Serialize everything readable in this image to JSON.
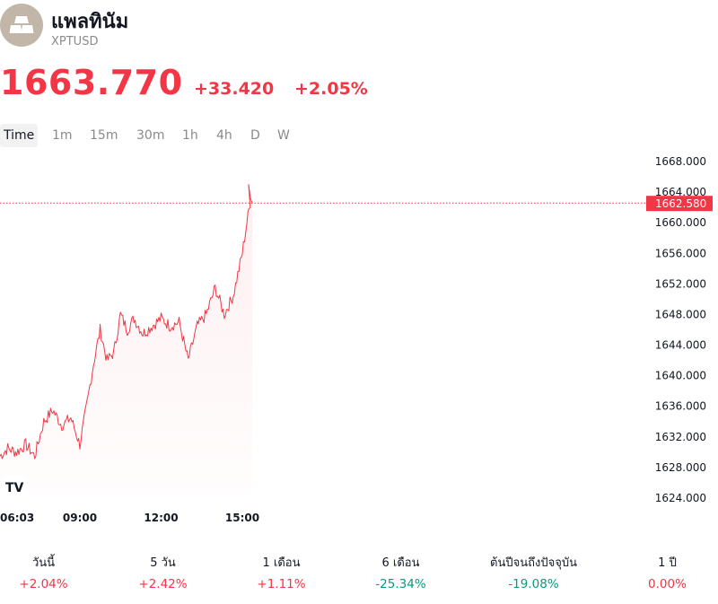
{
  "header": {
    "title": "แพลทินัม",
    "ticker": "XPTUSD",
    "logo_icon": "metal-bars-icon"
  },
  "quote": {
    "price": "1663.770",
    "change": "+33.420",
    "change_pct": "+2.05%",
    "color": "#f23645"
  },
  "tabs": [
    {
      "label": "Time",
      "active": true
    },
    {
      "label": "1m"
    },
    {
      "label": "15m"
    },
    {
      "label": "30m"
    },
    {
      "label": "1h"
    },
    {
      "label": "4h"
    },
    {
      "label": "D"
    },
    {
      "label": "W"
    }
  ],
  "chart_data": {
    "type": "line",
    "y_ticks": [
      "1668.000",
      "1664.000",
      "1660.000",
      "1656.000",
      "1652.000",
      "1648.000",
      "1644.000",
      "1640.000",
      "1636.000",
      "1632.000",
      "1628.000",
      "1624.000"
    ],
    "x_ticks": [
      "06:03",
      "09:00",
      "12:00",
      "15:00"
    ],
    "ylim": [
      1622,
      1670
    ],
    "current_price": 1662.58,
    "current_price_label": "1662.580",
    "line_color": "#f23645",
    "watermark": "TV",
    "series": [
      {
        "x": [
          "06:03",
          "06:20",
          "06:40",
          "07:00",
          "07:20",
          "07:40",
          "08:00",
          "08:20",
          "08:40",
          "09:00",
          "09:15",
          "09:30",
          "09:45",
          "10:00",
          "10:15",
          "10:30",
          "10:45",
          "11:00",
          "11:20",
          "11:40",
          "12:00",
          "12:20",
          "12:40",
          "13:00",
          "13:20",
          "13:40",
          "14:00",
          "14:20",
          "14:40",
          "15:00",
          "15:10",
          "15:20"
        ],
        "values": [
          1629.5,
          1630.5,
          1630.0,
          1631.0,
          1629.5,
          1634.0,
          1635.5,
          1633.5,
          1634.5,
          1631.0,
          1636.0,
          1641.5,
          1646.0,
          1642.0,
          1643.0,
          1648.0,
          1646.0,
          1647.5,
          1645.5,
          1646.5,
          1647.5,
          1646.5,
          1647.0,
          1642.0,
          1646.5,
          1648.0,
          1651.5,
          1648.0,
          1650.5,
          1656.0,
          1660.0,
          1663.5
        ]
      }
    ]
  },
  "performance": [
    {
      "label": "วันนี้",
      "value": "+2.04%",
      "trend": "up"
    },
    {
      "label": "5 วัน",
      "value": "+2.42%",
      "trend": "up"
    },
    {
      "label": "1 เดือน",
      "value": "+1.11%",
      "trend": "up"
    },
    {
      "label": "6 เดือน",
      "value": "-25.34%",
      "trend": "down"
    },
    {
      "label": "ต้นปีจนถึงปัจจุบัน",
      "value": "-19.08%",
      "trend": "down"
    },
    {
      "label": "1 ปี",
      "value": "0.00%",
      "trend": "up"
    }
  ]
}
